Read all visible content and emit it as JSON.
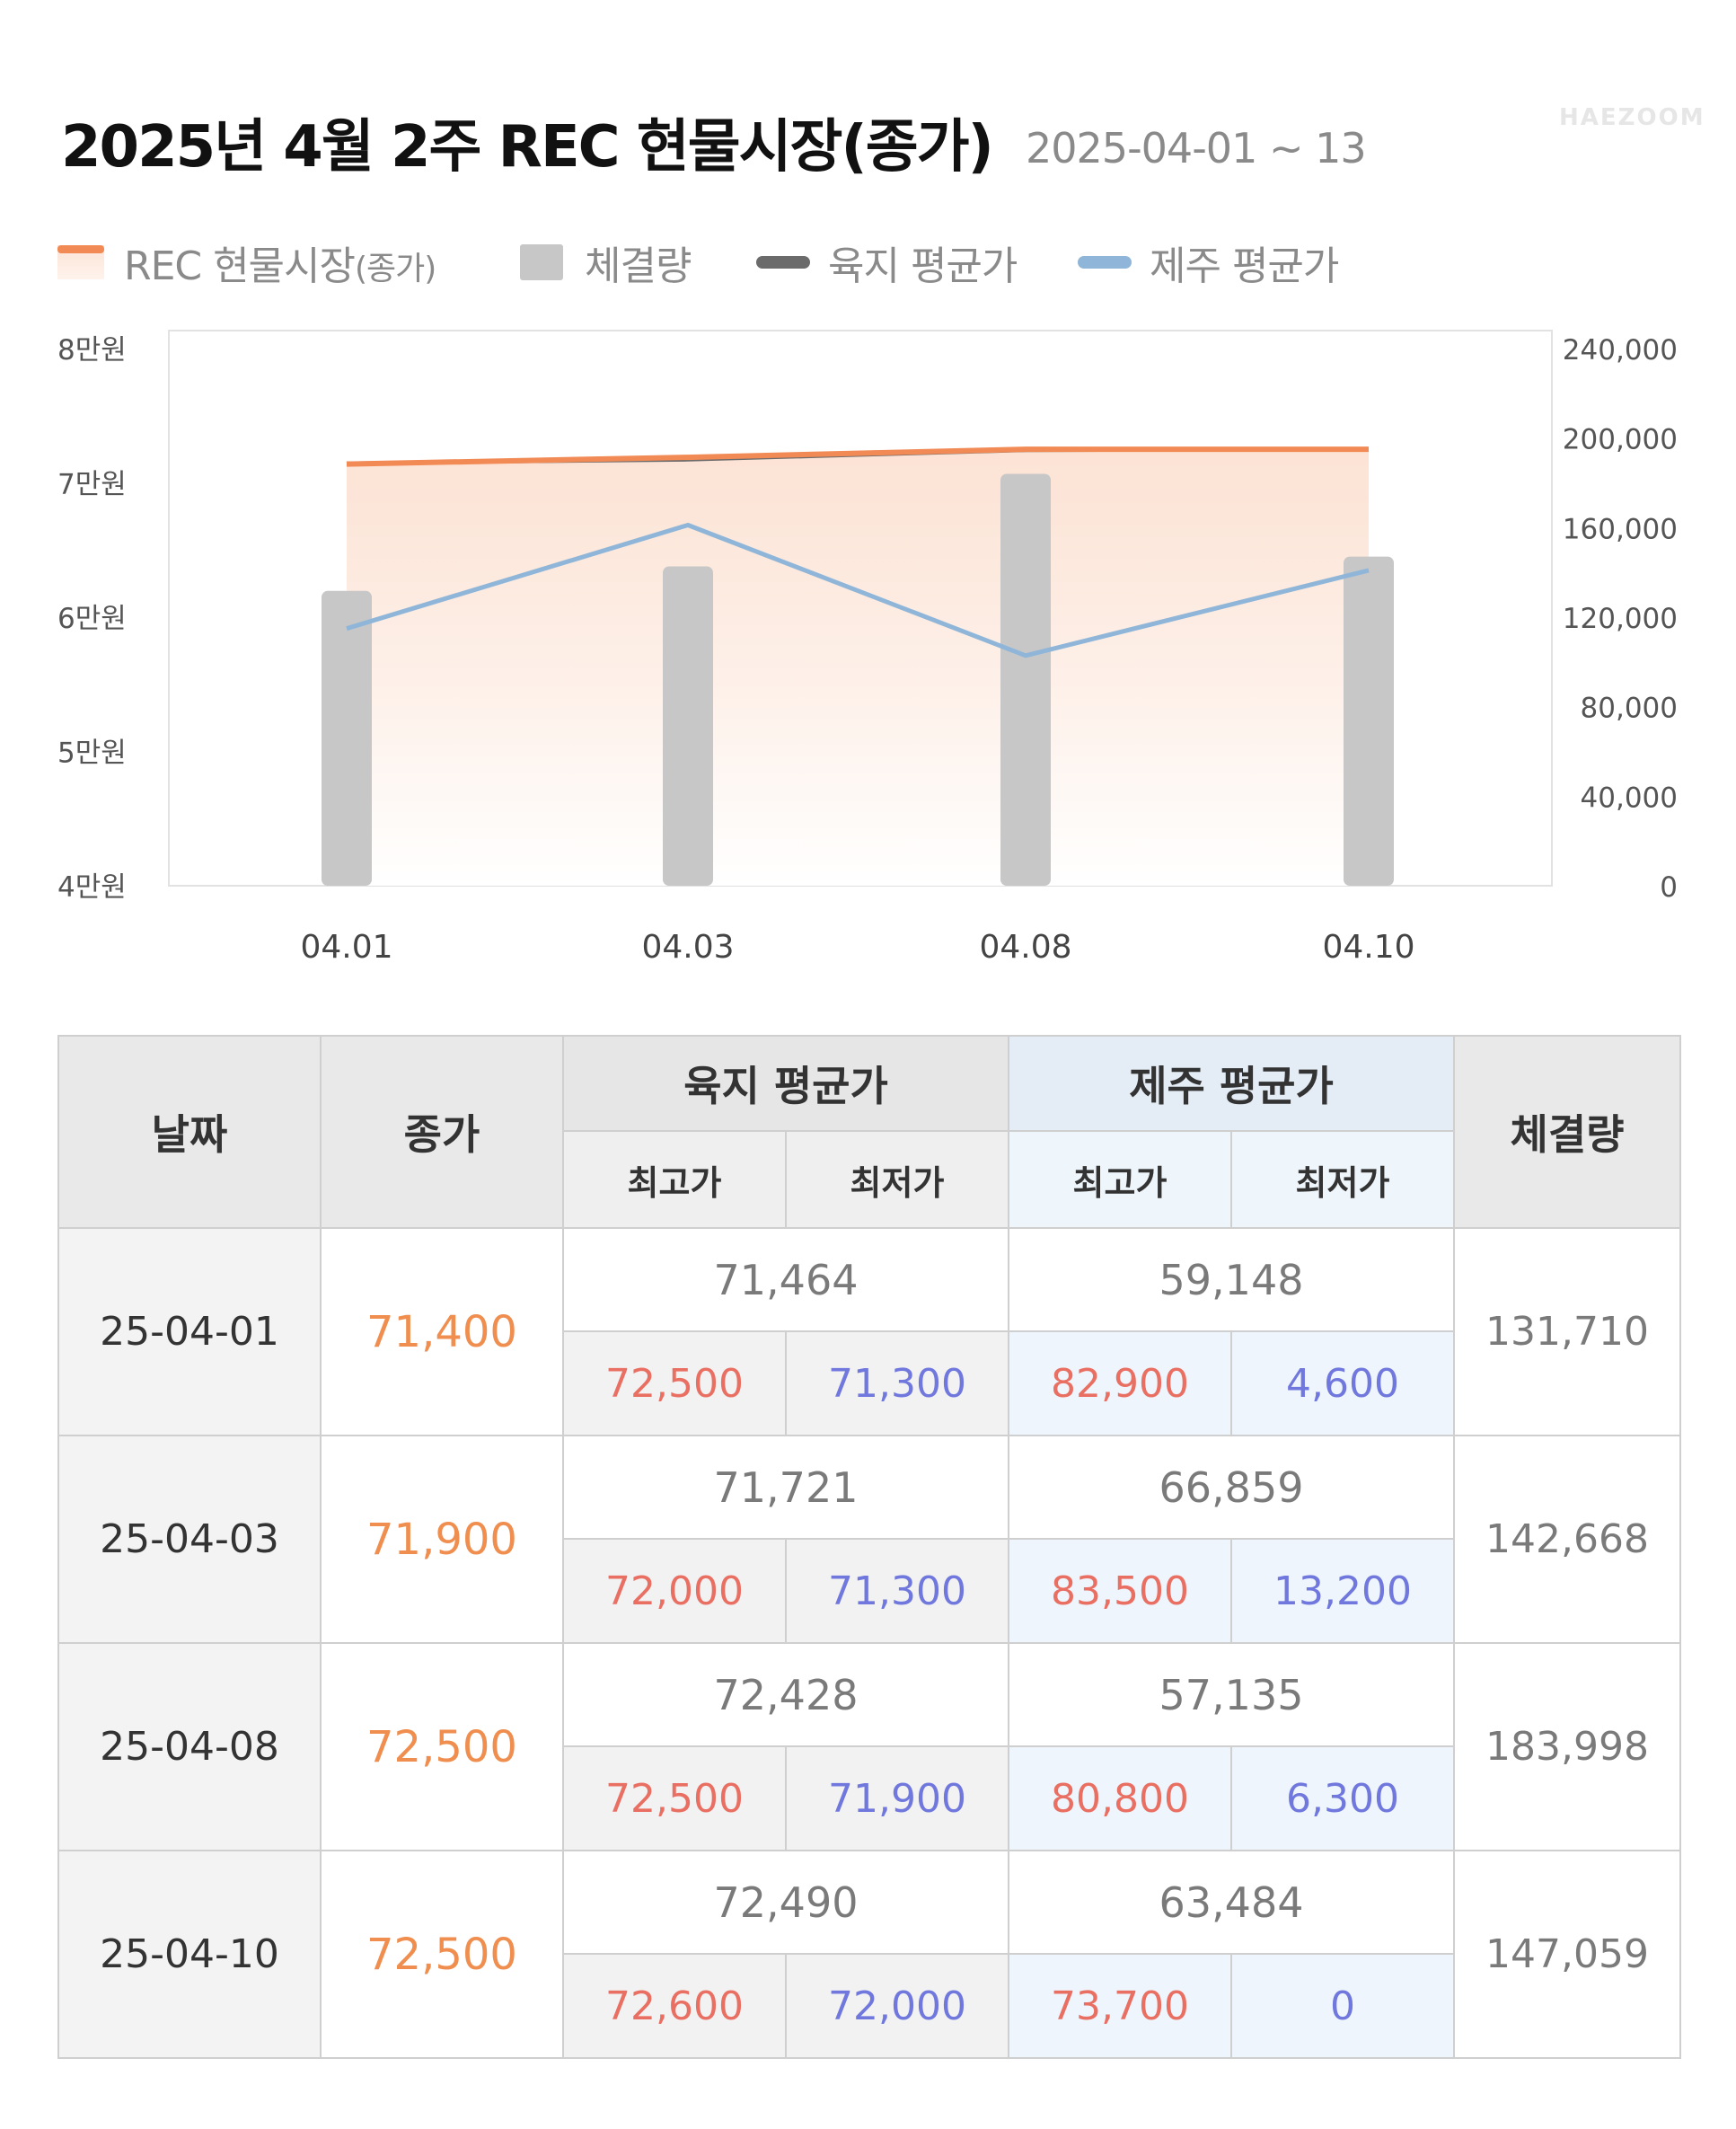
{
  "header": {
    "title": "2025년 4월 2주 REC 현물시장(종가)",
    "subtitle": "2025-04-01 ~ 13",
    "brand": "HAEZOOM"
  },
  "legend": [
    {
      "key": "rec",
      "label": "REC 현물시장",
      "suffix": "(종가)",
      "color": "#f28a55"
    },
    {
      "key": "volume",
      "label": "체결량",
      "color": "#c7c7c7"
    },
    {
      "key": "land",
      "label": "육지 평균가",
      "color": "#6b6b6b"
    },
    {
      "key": "jeju",
      "label": "제주 평균가",
      "color": "#8fb6d8"
    }
  ],
  "chart_data": {
    "type": "bar+line",
    "categories": [
      "04.01",
      "04.03",
      "04.08",
      "04.10"
    ],
    "left_axis": {
      "ticks": [
        "8만원",
        "7만원",
        "6만원",
        "5만원",
        "4만원"
      ],
      "range": [
        40000,
        80000
      ]
    },
    "right_axis": {
      "ticks": [
        "240,000",
        "200,000",
        "160,000",
        "120,000",
        "80,000",
        "40,000",
        "0"
      ],
      "range": [
        0,
        240000
      ]
    },
    "series": [
      {
        "name": "체결량",
        "type": "bar",
        "axis": "right",
        "values": [
          131710,
          142668,
          183998,
          147059
        ]
      },
      {
        "name": "REC 현물시장(종가)",
        "type": "area",
        "axis": "left",
        "values": [
          71400,
          71900,
          72500,
          72500
        ]
      },
      {
        "name": "육지 평균가",
        "type": "line",
        "axis": "left",
        "values": [
          71464,
          71721,
          72428,
          72490
        ]
      },
      {
        "name": "제주 평균가",
        "type": "line",
        "axis": "left",
        "values": [
          59148,
          66859,
          57135,
          63484
        ]
      }
    ],
    "grid": false,
    "legend_position": "top-left"
  },
  "table": {
    "headers": {
      "date": "날짜",
      "close": "종가",
      "land": "육지 평균가",
      "jeju": "제주 평균가",
      "high": "최고가",
      "low": "최저가",
      "volume": "체결량"
    },
    "rows": [
      {
        "date": "25-04-01",
        "close": "71,400",
        "land_avg": "71,464",
        "jeju_avg": "59,148",
        "land_high": "72,500",
        "land_low": "71,300",
        "jeju_high": "82,900",
        "jeju_low": "4,600",
        "volume": "131,710"
      },
      {
        "date": "25-04-03",
        "close": "71,900",
        "land_avg": "71,721",
        "jeju_avg": "66,859",
        "land_high": "72,000",
        "land_low": "71,300",
        "jeju_high": "83,500",
        "jeju_low": "13,200",
        "volume": "142,668"
      },
      {
        "date": "25-04-08",
        "close": "72,500",
        "land_avg": "72,428",
        "jeju_avg": "57,135",
        "land_high": "72,500",
        "land_low": "71,900",
        "jeju_high": "80,800",
        "jeju_low": "6,300",
        "volume": "183,998"
      },
      {
        "date": "25-04-10",
        "close": "72,500",
        "land_avg": "72,490",
        "jeju_avg": "63,484",
        "land_high": "72,600",
        "land_low": "72,000",
        "jeju_high": "73,700",
        "jeju_low": "0",
        "volume": "147,059"
      }
    ]
  }
}
